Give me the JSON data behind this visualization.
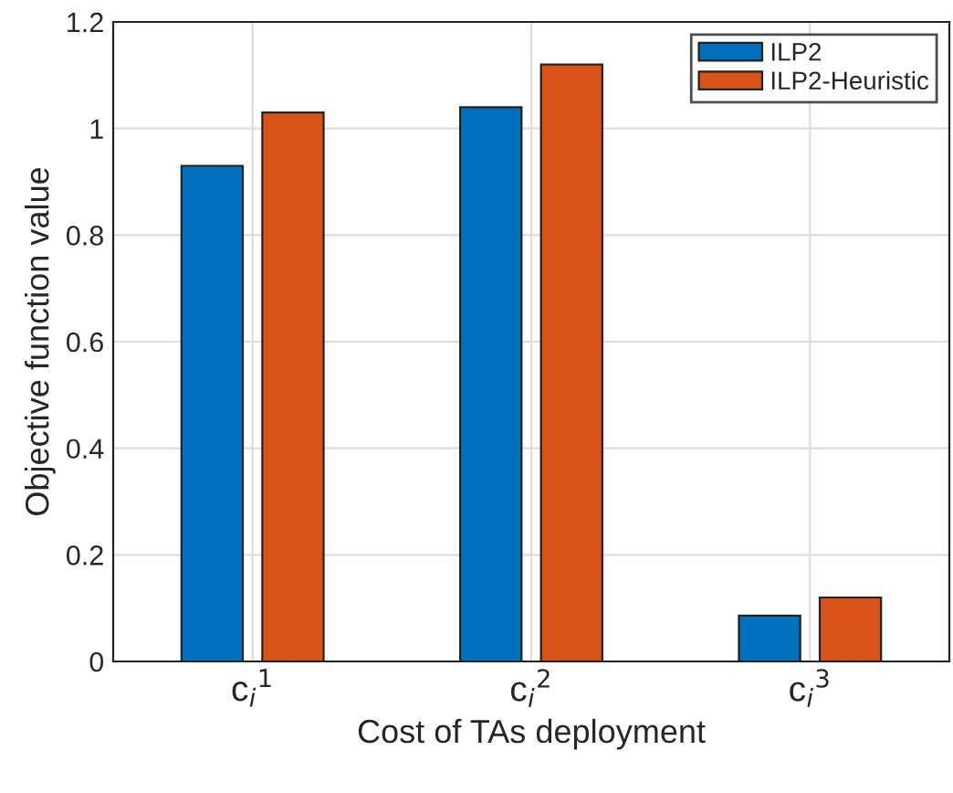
{
  "chart_data": {
    "type": "bar",
    "xlabel": "Cost of TAs deployment",
    "ylabel": "Objective function value",
    "categories": [
      "c$_{i}$$^{1}$",
      "c$_{i}$$^{2}$",
      "c$_{i}$$^{3}$"
    ],
    "series": [
      {
        "name": "ILP2",
        "color": "#0072bd",
        "values": [
          0.93,
          1.04,
          0.086
        ]
      },
      {
        "name": "ILP2-Heuristic",
        "color": "#d95319",
        "values": [
          1.03,
          1.12,
          0.12
        ]
      }
    ],
    "ylim": [
      0,
      1.2
    ],
    "yticks": [
      0,
      0.2,
      0.4,
      0.6,
      0.8,
      1,
      1.2
    ],
    "grid": true,
    "legend": "top right"
  }
}
